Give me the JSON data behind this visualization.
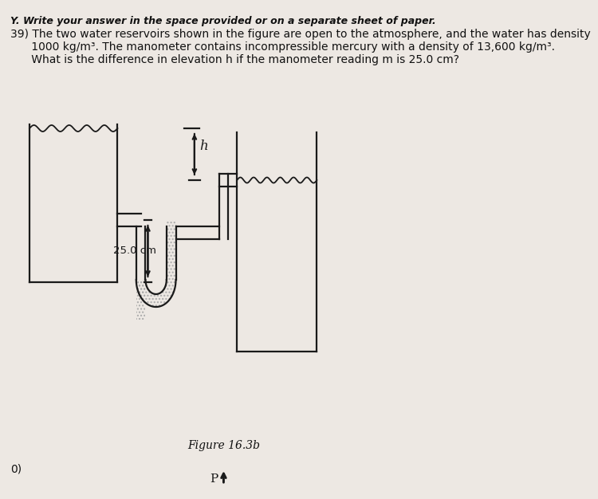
{
  "bg_color": "#ede8e3",
  "line_color": "#1a1a1a",
  "text_color": "#111111",
  "mercury_hatch_color": "#999999",
  "header_text": "Y. Write your answer in the space provided or on a separate sheet of paper.",
  "q_line1": "39) The two water reservoirs shown in the figure are open to the atmosphere, and the water has density",
  "q_line2": "      1000 kg/m³. The manometer contains incompressible mercury with a density of 13,600 kg/m³.",
  "q_line3": "      What is the difference in elevation h if the manometer reading m is 25.0 cm?",
  "figure_label": "Figure 16.3b",
  "p_label": "P",
  "h_label": "h",
  "m_label": "25.0 cm",
  "header_fontsize": 9,
  "body_fontsize": 10,
  "fig_label_fontsize": 10,
  "annot_fontsize": 10
}
